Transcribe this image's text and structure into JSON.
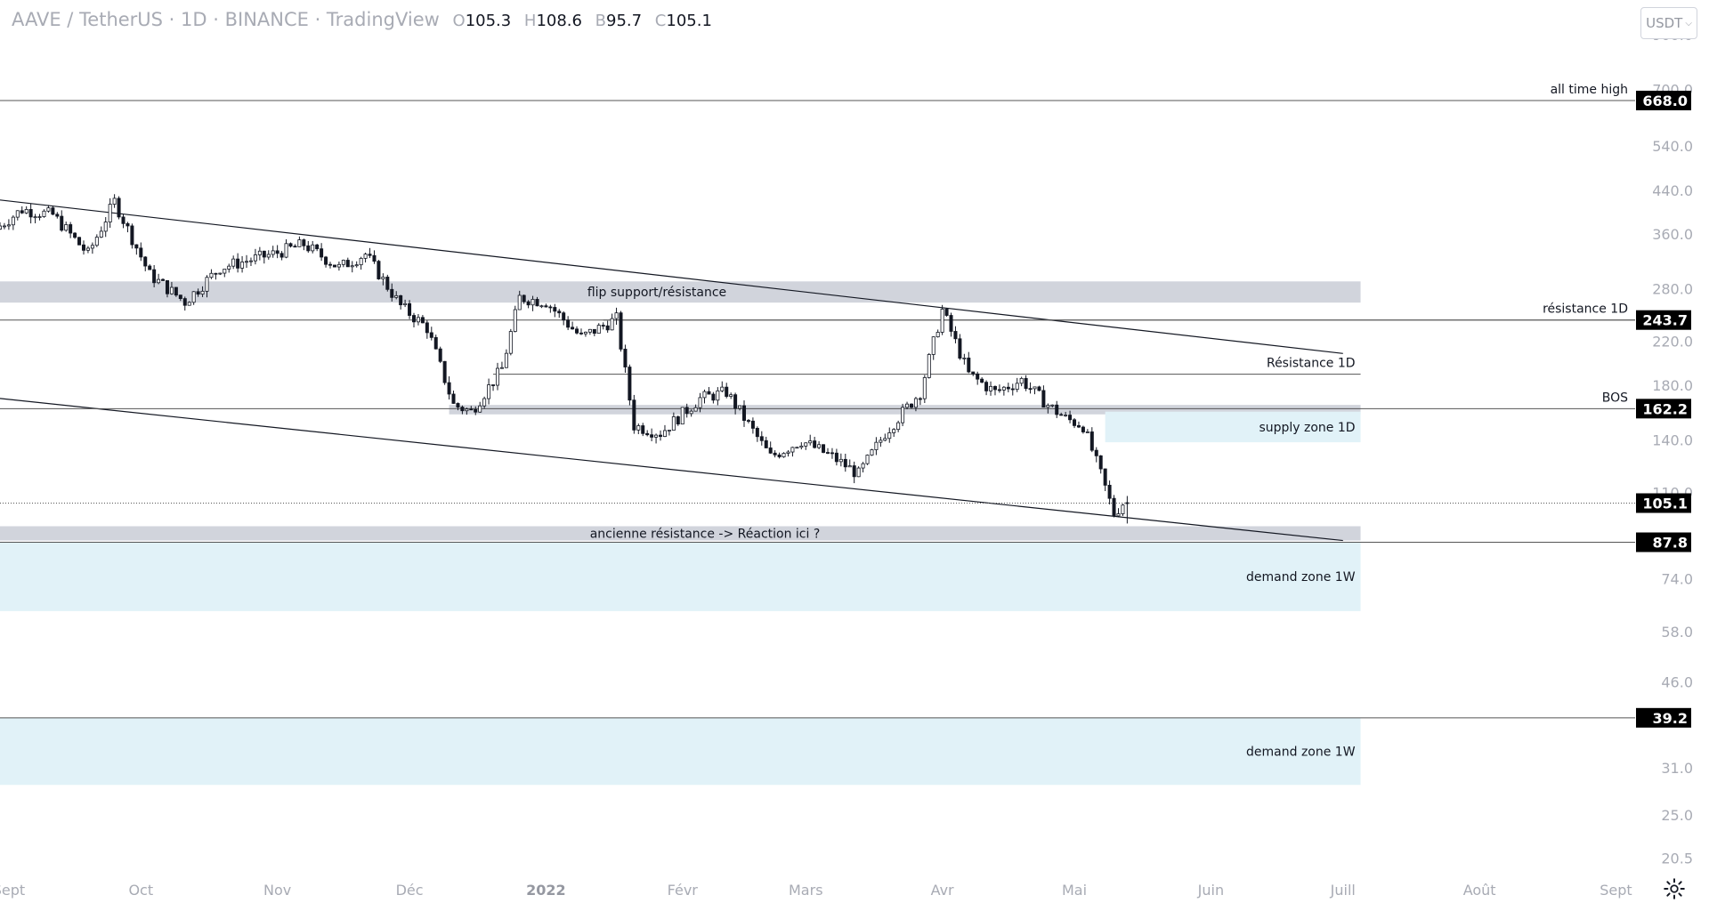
{
  "header": {
    "symbol": "AAVE / TetherUS · 1D · BINANCE · TradingView",
    "o_label": "O",
    "o_value": "105.3",
    "h_label": "H",
    "h_value": "108.6",
    "b_label": "B",
    "b_value": "95.7",
    "c_label": "C",
    "c_value": "105.1"
  },
  "currency_button": "USDT",
  "chart_data": {
    "type": "candlestick",
    "title": "AAVE / TetherUS · 1D · BINANCE · TradingView",
    "y_scale": "log",
    "ylim": [
      17.8,
      1060
    ],
    "xlim": [
      "2021-08-30",
      "2022-09-10"
    ],
    "y_ticks": [
      "900.0",
      "700.0",
      "540.0",
      "440.0",
      "360.0",
      "280.0",
      "220.0",
      "180.0",
      "140.0",
      "110.0",
      "74.0",
      "58.0",
      "46.0",
      "31.0",
      "25.0",
      "20.5"
    ],
    "x_ticks": [
      {
        "label": "Sept",
        "date": "2021-09-01"
      },
      {
        "label": "Oct",
        "date": "2021-10-01"
      },
      {
        "label": "Nov",
        "date": "2021-11-01"
      },
      {
        "label": "Déc",
        "date": "2021-12-01"
      },
      {
        "label": "2022",
        "date": "2022-01-01"
      },
      {
        "label": "Févr",
        "date": "2022-02-01"
      },
      {
        "label": "Mars",
        "date": "2022-03-01"
      },
      {
        "label": "Avr",
        "date": "2022-04-01"
      },
      {
        "label": "Mai",
        "date": "2022-05-01"
      },
      {
        "label": "Juin",
        "date": "2022-06-01"
      },
      {
        "label": "Juill",
        "date": "2022-07-01"
      },
      {
        "label": "Août",
        "date": "2022-08-01"
      },
      {
        "label": "Sept",
        "date": "2022-09-01"
      }
    ],
    "price_path": [
      [
        "2021-08-30",
        370
      ],
      [
        "2021-09-05",
        405
      ],
      [
        "2021-09-12",
        395
      ],
      [
        "2021-09-20",
        330
      ],
      [
        "2021-09-26",
        420
      ],
      [
        "2021-10-04",
        300
      ],
      [
        "2021-10-12",
        265
      ],
      [
        "2021-10-20",
        310
      ],
      [
        "2021-11-01",
        330
      ],
      [
        "2021-11-08",
        345
      ],
      [
        "2021-11-16",
        310
      ],
      [
        "2021-11-22",
        330
      ],
      [
        "2021-11-30",
        260
      ],
      [
        "2021-12-06",
        235
      ],
      [
        "2021-12-12",
        165
      ],
      [
        "2021-12-16",
        160
      ],
      [
        "2021-12-23",
        195
      ],
      [
        "2021-12-27",
        270
      ],
      [
        "2022-01-02",
        265
      ],
      [
        "2022-01-10",
        225
      ],
      [
        "2022-01-18",
        245
      ],
      [
        "2022-01-22",
        150
      ],
      [
        "2022-01-28",
        145
      ],
      [
        "2022-02-06",
        170
      ],
      [
        "2022-02-12",
        175
      ],
      [
        "2022-02-22",
        130
      ],
      [
        "2022-03-01",
        140
      ],
      [
        "2022-03-08",
        130
      ],
      [
        "2022-03-14",
        120
      ],
      [
        "2022-03-20",
        145
      ],
      [
        "2022-03-28",
        175
      ],
      [
        "2022-04-02",
        255
      ],
      [
        "2022-04-08",
        190
      ],
      [
        "2022-04-14",
        175
      ],
      [
        "2022-04-20",
        185
      ],
      [
        "2022-04-26",
        165
      ],
      [
        "2022-04-30",
        155
      ],
      [
        "2022-05-04",
        150
      ],
      [
        "2022-05-08",
        120
      ],
      [
        "2022-05-11",
        100
      ],
      [
        "2022-05-13",
        105.1
      ]
    ],
    "last_candle": {
      "open": 105.3,
      "high": 108.6,
      "low": 95.7,
      "close": 105.1
    },
    "price_labels": [
      {
        "value": 668.0,
        "text": "668.0",
        "caption": "all time high"
      },
      {
        "value": 243.7,
        "text": "243.7",
        "caption": "résistance 1D"
      },
      {
        "value": 162.2,
        "text": "162.2",
        "caption": "BOS"
      },
      {
        "value": 105.1,
        "text": "105.1",
        "caption": ""
      },
      {
        "value": 87.8,
        "text": "87.8",
        "caption": ""
      },
      {
        "value": 39.2,
        "text": "39.2",
        "caption": ""
      }
    ],
    "zones": [
      {
        "label": "flip support/résistance",
        "from": 264,
        "to": 291,
        "start": "2021-08-30",
        "end": "2022-07-05",
        "color": "#d1d4dc"
      },
      {
        "label": "",
        "from": 158,
        "to": 165,
        "start": "2021-12-10",
        "end": "2022-07-05",
        "color": "#d1d4dc"
      },
      {
        "label": "supply zone 1D",
        "from": 139,
        "to": 160,
        "start": "2022-05-08",
        "end": "2022-07-05",
        "color": "#e1f2f8"
      },
      {
        "label": "ancienne résistance -> Réaction ici ?",
        "from": 88.5,
        "to": 94.5,
        "start": "2021-08-30",
        "end": "2022-07-05",
        "color": "#d1d4dc"
      },
      {
        "label": "demand zone 1W",
        "from": 64,
        "to": 88,
        "start": "2021-08-30",
        "end": "2022-07-05",
        "color": "#e1f2f8"
      },
      {
        "label": "demand zone 1W",
        "from": 28.8,
        "to": 39.2,
        "start": "2021-08-30",
        "end": "2022-07-05",
        "color": "#e1f2f8"
      }
    ],
    "levels": [
      {
        "label": "Résistance 1D",
        "value": 190,
        "start": "2021-12-20",
        "end": "2022-07-05"
      },
      {
        "label": "",
        "value": 243.7,
        "start": "2022-01-14",
        "end": "2022-09-10"
      }
    ],
    "trendlines": [
      {
        "points": [
          [
            "2021-08-30",
            423
          ],
          [
            "2022-07-01",
            209
          ]
        ]
      },
      {
        "points": [
          [
            "2021-08-30",
            170
          ],
          [
            "2022-07-01",
            88.5
          ]
        ]
      }
    ],
    "colors": {
      "candle": "#131722",
      "zone_grey": "#d1d4dc",
      "zone_blue": "#e1f2f8"
    }
  }
}
